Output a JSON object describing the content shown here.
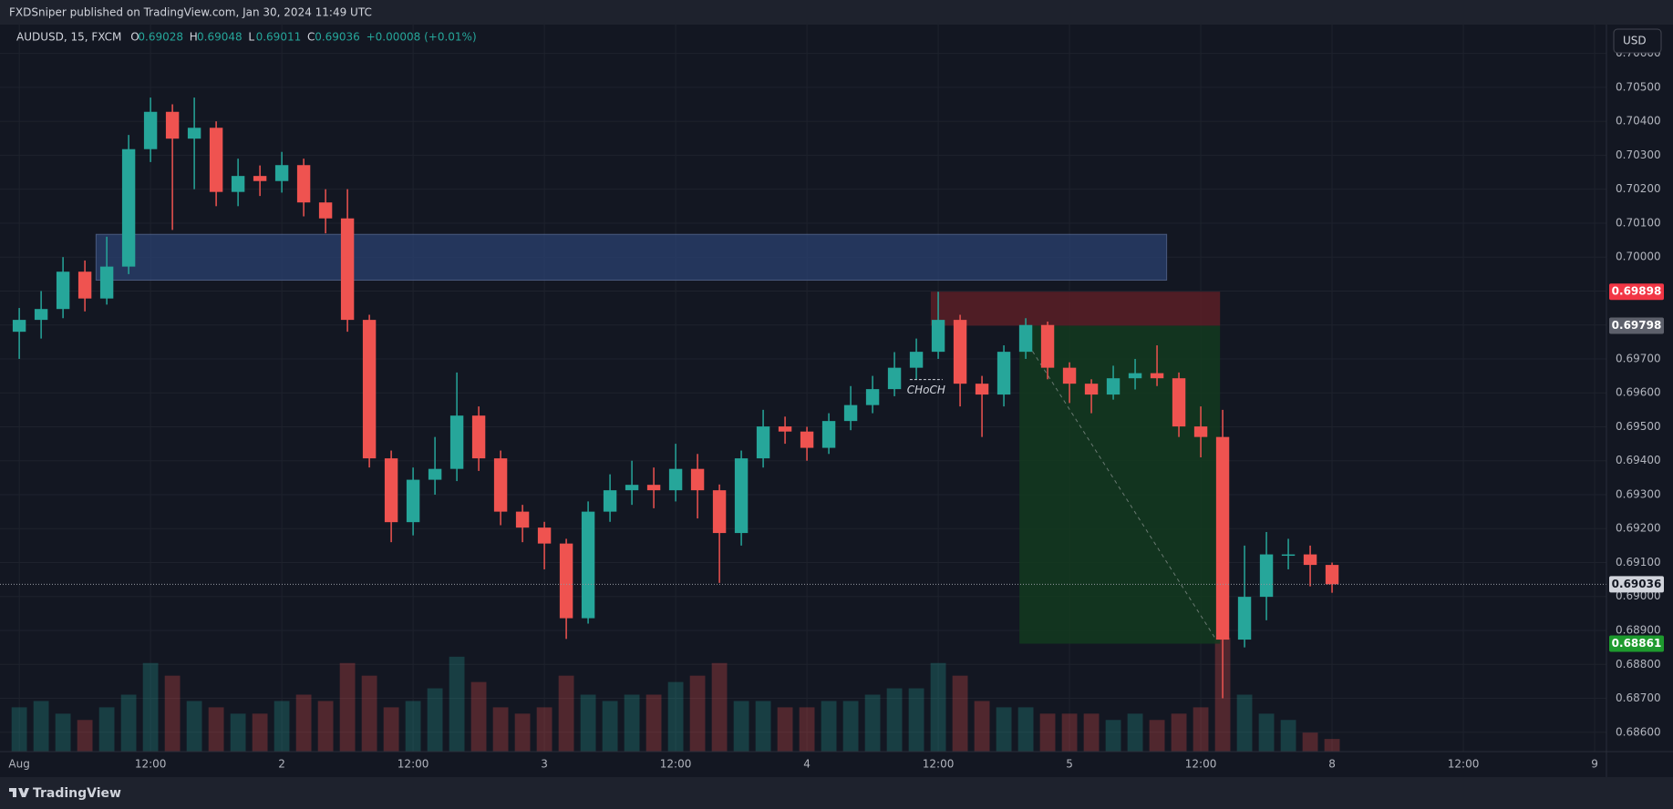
{
  "header": {
    "title": "FXDSniper published on TradingView.com, Jan 30, 2024 11:49 UTC"
  },
  "legend": {
    "symbol": "AUDUSD, 15, FXCM",
    "fields": [
      {
        "key": "O",
        "value": 0.69028
      },
      {
        "key": "H",
        "value": 0.69048
      },
      {
        "key": "L",
        "value": 0.69011
      },
      {
        "key": "C",
        "value": 0.69036
      }
    ],
    "change": "+0.00008 (+0.01%)"
  },
  "currency_button": "USD",
  "footer": {
    "brand": "TradingView"
  },
  "chart_data": {
    "type": "candlestick",
    "up_color": "#26a69a",
    "down_color": "#ef5350",
    "grid": true,
    "xlim": [
      -0.88,
      72.54
    ],
    "ylim": [
      0.68543,
      0.70685
    ],
    "xticks": [
      {
        "value": 0,
        "label": "Aug"
      },
      {
        "value": 6,
        "label": "12:00"
      },
      {
        "value": 12,
        "label": "2"
      },
      {
        "value": 18,
        "label": "12:00"
      },
      {
        "value": 24,
        "label": "3"
      },
      {
        "value": 30,
        "label": "12:00"
      },
      {
        "value": 36,
        "label": "4"
      },
      {
        "value": 42,
        "label": "12:00"
      },
      {
        "value": 48,
        "label": "5"
      },
      {
        "value": 54,
        "label": "12:00"
      },
      {
        "value": 60,
        "label": "8"
      },
      {
        "value": 66,
        "label": "12:00"
      },
      {
        "value": 72,
        "label": "9"
      }
    ],
    "yticks": [
      {
        "value": 0.686,
        "label": "0.68600"
      },
      {
        "value": 0.687,
        "label": "0.68700"
      },
      {
        "value": 0.688,
        "label": "0.68800"
      },
      {
        "value": 0.689,
        "label": "0.68900"
      },
      {
        "value": 0.69,
        "label": "0.69000"
      },
      {
        "value": 0.691,
        "label": "0.69100"
      },
      {
        "value": 0.692,
        "label": "0.69200"
      },
      {
        "value": 0.693,
        "label": "0.69300"
      },
      {
        "value": 0.694,
        "label": "0.69400"
      },
      {
        "value": 0.695,
        "label": "0.69500"
      },
      {
        "value": 0.696,
        "label": "0.69600"
      },
      {
        "value": 0.697,
        "label": "0.69700"
      },
      {
        "value": 0.698,
        "label": "0.69800"
      },
      {
        "value": 0.699,
        "label": "0.69900"
      },
      {
        "value": 0.7,
        "label": "0.70000"
      },
      {
        "value": 0.701,
        "label": "0.70100"
      },
      {
        "value": 0.702,
        "label": "0.70200"
      },
      {
        "value": 0.703,
        "label": "0.70300"
      },
      {
        "value": 0.704,
        "label": "0.70400"
      },
      {
        "value": 0.705,
        "label": "0.70500"
      },
      {
        "value": 0.706,
        "label": "0.70600"
      }
    ],
    "x": [
      0,
      1,
      2,
      3,
      4,
      5,
      6,
      7,
      8,
      9,
      10,
      11,
      12,
      13,
      14,
      15,
      16,
      17,
      18,
      19,
      20,
      21,
      22,
      23,
      24,
      25,
      26,
      27,
      28,
      29,
      30,
      31,
      32,
      33,
      34,
      35,
      36,
      37,
      38,
      39,
      40,
      41,
      42,
      43,
      44,
      45,
      46,
      47,
      48,
      49,
      50,
      51,
      52,
      53,
      54,
      55,
      56,
      57,
      58,
      59,
      60
    ],
    "open": [
      0.6978,
      0.69815,
      0.69847,
      0.69957,
      0.69878,
      0.69972,
      0.70318,
      0.70428,
      0.70349,
      0.70381,
      0.70192,
      0.70239,
      0.70224,
      0.70271,
      0.70161,
      0.70114,
      0.69815,
      0.69407,
      0.69219,
      0.69344,
      0.69376,
      0.69533,
      0.69407,
      0.6925,
      0.69203,
      0.69156,
      0.68936,
      0.6925,
      0.69313,
      0.69329,
      0.69313,
      0.69376,
      0.69313,
      0.69187,
      0.69407,
      0.69501,
      0.69486,
      0.69438,
      0.69517,
      0.69564,
      0.69611,
      0.69674,
      0.69721,
      0.69815,
      0.69627,
      0.69595,
      0.69721,
      0.698,
      0.69674,
      0.69627,
      0.69595,
      0.69643,
      0.69658,
      0.69643,
      0.69501,
      0.6947,
      0.68873,
      0.68999,
      0.69124,
      0.69124,
      0.69093
    ],
    "high": [
      0.6985,
      0.699,
      0.7,
      0.6999,
      0.7006,
      0.7036,
      0.7047,
      0.7045,
      0.7047,
      0.704,
      0.7029,
      0.7027,
      0.7031,
      0.7029,
      0.702,
      0.702,
      0.6983,
      0.6943,
      0.6938,
      0.6947,
      0.6966,
      0.6956,
      0.6943,
      0.6927,
      0.6922,
      0.6917,
      0.6928,
      0.6936,
      0.694,
      0.6938,
      0.6945,
      0.6942,
      0.6933,
      0.6943,
      0.6955,
      0.6953,
      0.695,
      0.6954,
      0.6962,
      0.6965,
      0.6972,
      0.6976,
      0.69898,
      0.6983,
      0.6965,
      0.6974,
      0.6982,
      0.6981,
      0.6969,
      0.6964,
      0.6968,
      0.697,
      0.6974,
      0.6966,
      0.6956,
      0.6955,
      0.6915,
      0.6919,
      0.6917,
      0.6915,
      0.691
    ],
    "low": [
      0.697,
      0.6976,
      0.6982,
      0.6984,
      0.6986,
      0.6995,
      0.7028,
      0.7008,
      0.702,
      0.7015,
      0.7015,
      0.7018,
      0.7019,
      0.7012,
      0.7007,
      0.6978,
      0.6938,
      0.6916,
      0.6918,
      0.693,
      0.6934,
      0.6937,
      0.6921,
      0.6916,
      0.6908,
      0.68875,
      0.6892,
      0.6922,
      0.6927,
      0.6926,
      0.6928,
      0.6923,
      0.6904,
      0.6915,
      0.6938,
      0.6945,
      0.694,
      0.6942,
      0.6949,
      0.6954,
      0.6959,
      0.6964,
      0.697,
      0.6956,
      0.6947,
      0.6956,
      0.697,
      0.6964,
      0.6957,
      0.6954,
      0.6958,
      0.6961,
      0.6962,
      0.6947,
      0.6941,
      0.687,
      0.6885,
      0.6893,
      0.6908,
      0.6903,
      0.69011
    ],
    "close": [
      0.69815,
      0.69847,
      0.69957,
      0.69878,
      0.69972,
      0.70318,
      0.70428,
      0.70349,
      0.70381,
      0.70192,
      0.70239,
      0.70224,
      0.70271,
      0.70161,
      0.70114,
      0.69815,
      0.69407,
      0.69219,
      0.69344,
      0.69376,
      0.69533,
      0.69407,
      0.6925,
      0.69203,
      0.69156,
      0.68936,
      0.6925,
      0.69313,
      0.69329,
      0.69313,
      0.69376,
      0.69313,
      0.69187,
      0.69407,
      0.69501,
      0.69486,
      0.69438,
      0.69517,
      0.69564,
      0.69611,
      0.69674,
      0.69721,
      0.69815,
      0.69627,
      0.69595,
      0.69721,
      0.698,
      0.69674,
      0.69627,
      0.69595,
      0.69643,
      0.69658,
      0.69643,
      0.69501,
      0.6947,
      0.68873,
      0.68999,
      0.69124,
      0.69124,
      0.69093,
      0.69036
    ],
    "volume": [
      35,
      40,
      30,
      25,
      35,
      45,
      70,
      60,
      40,
      35,
      30,
      30,
      40,
      45,
      40,
      70,
      60,
      35,
      40,
      50,
      75,
      55,
      35,
      30,
      35,
      60,
      45,
      40,
      45,
      45,
      55,
      60,
      70,
      40,
      40,
      35,
      35,
      40,
      40,
      45,
      50,
      50,
      70,
      60,
      40,
      35,
      35,
      30,
      30,
      30,
      25,
      30,
      25,
      30,
      35,
      90,
      45,
      30,
      25,
      15,
      10
    ],
    "current_price": 0.69036,
    "price_labels": {
      "values": [
        0.69898,
        0.69798,
        0.69036,
        0.68861
      ],
      "colors": [
        "#f23645",
        "#5d606b",
        "#d1d4dc",
        "#1e9a2e"
      ]
    },
    "zones": [
      {
        "x": [
          3.51,
          52.44
        ],
        "y": [
          0.69932,
          0.70067
        ],
        "color": "#2a4170"
      },
      {
        "x": [
          41.66,
          54.88
        ],
        "y": [
          0.69798,
          0.69898
        ],
        "color": "#5a1f26"
      },
      {
        "x": [
          45.71,
          54.88
        ],
        "y": [
          0.68861,
          0.69798
        ],
        "color": "#13391f"
      }
    ],
    "trend_line": {
      "x": [
        45.95,
        54.7
      ],
      "y": [
        0.69759,
        0.68873
      ]
    },
    "annotation": {
      "text": "CHoCH",
      "x": [
        40.7,
        42.2
      ],
      "y": 0.69639
    }
  }
}
